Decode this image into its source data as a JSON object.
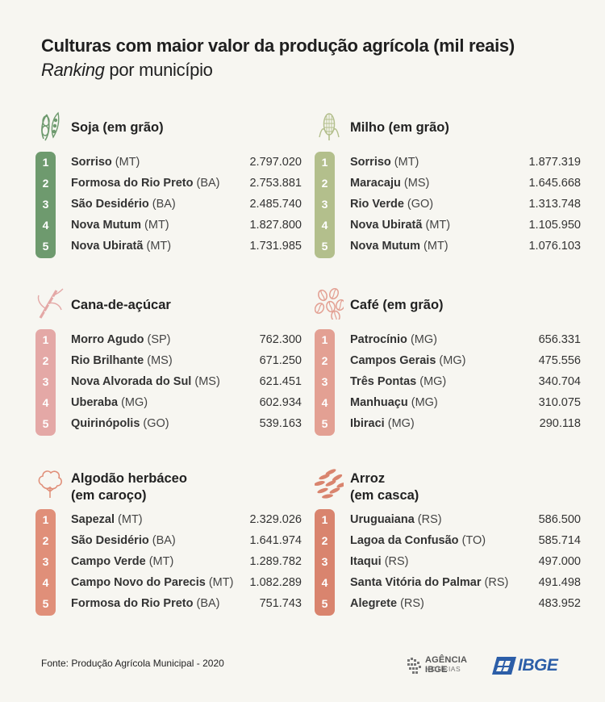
{
  "header": {
    "title": "Culturas com maior valor da produção agrícola (mil reais)",
    "subtitle_italic": "Ranking",
    "subtitle_rest": " por município"
  },
  "colors": {
    "soja": "#6e9a6e",
    "milho": "#b3bf8c",
    "cana": "#e4a8a6",
    "cafe": "#e3a093",
    "algodao": "#e08f79",
    "arroz": "#d9846e"
  },
  "chart_data": [
    {
      "type": "table",
      "title": "Soja (em grão)",
      "icon": "soy-icon",
      "rows": [
        {
          "rank": "1",
          "name": "Sorriso",
          "uf": "(MT)",
          "value": "2.797.020"
        },
        {
          "rank": "2",
          "name": "Formosa do Rio Preto",
          "uf": "(BA)",
          "value": "2.753.881"
        },
        {
          "rank": "3",
          "name": "São Desidério",
          "uf": "(BA)",
          "value": "2.485.740"
        },
        {
          "rank": "4",
          "name": "Nova Mutum",
          "uf": "(MT)",
          "value": "1.827.800"
        },
        {
          "rank": "5",
          "name": "Nova Ubiratã",
          "uf": "(MT)",
          "value": "1.731.985"
        }
      ]
    },
    {
      "type": "table",
      "title": "Milho (em grão)",
      "icon": "corn-icon",
      "rows": [
        {
          "rank": "1",
          "name": "Sorriso",
          "uf": "(MT)",
          "value": "1.877.319"
        },
        {
          "rank": "2",
          "name": "Maracaju",
          "uf": "(MS)",
          "value": "1.645.668"
        },
        {
          "rank": "3",
          "name": "Rio Verde",
          "uf": "(GO)",
          "value": "1.313.748"
        },
        {
          "rank": "4",
          "name": "Nova Ubiratã",
          "uf": "(MT)",
          "value": "1.105.950"
        },
        {
          "rank": "5",
          "name": "Nova Mutum",
          "uf": "(MT)",
          "value": "1.076.103"
        }
      ]
    },
    {
      "type": "table",
      "title": "Cana-de-açúcar",
      "icon": "sugarcane-icon",
      "rows": [
        {
          "rank": "1",
          "name": "Morro Agudo",
          "uf": "(SP)",
          "value": "762.300"
        },
        {
          "rank": "2",
          "name": "Rio Brilhante",
          "uf": "(MS)",
          "value": "671.250"
        },
        {
          "rank": "3",
          "name": "Nova Alvorada do Sul",
          "uf": "(MS)",
          "value": "621.451"
        },
        {
          "rank": "4",
          "name": "Uberaba",
          "uf": "(MG)",
          "value": "602.934"
        },
        {
          "rank": "5",
          "name": "Quirinópolis",
          "uf": "(GO)",
          "value": "539.163"
        }
      ]
    },
    {
      "type": "table",
      "title": "Café (em grão)",
      "icon": "coffee-beans-icon",
      "rows": [
        {
          "rank": "1",
          "name": "Patrocínio",
          "uf": "(MG)",
          "value": "656.331"
        },
        {
          "rank": "2",
          "name": "Campos Gerais",
          "uf": "(MG)",
          "value": "475.556"
        },
        {
          "rank": "3",
          "name": "Três Pontas",
          "uf": "(MG)",
          "value": "340.704"
        },
        {
          "rank": "4",
          "name": "Manhuaçu",
          "uf": "(MG)",
          "value": "310.075"
        },
        {
          "rank": "5",
          "name": "Ibiraci",
          "uf": "(MG)",
          "value": "290.118"
        }
      ]
    },
    {
      "type": "table",
      "title": "Algodão herbáceo\n(em caroço)",
      "icon": "cotton-icon",
      "rows": [
        {
          "rank": "1",
          "name": "Sapezal",
          "uf": "(MT)",
          "value": "2.329.026"
        },
        {
          "rank": "2",
          "name": "São Desidério",
          "uf": "(BA)",
          "value": "1.641.974"
        },
        {
          "rank": "3",
          "name": "Campo Verde",
          "uf": "(MT)",
          "value": "1.289.782"
        },
        {
          "rank": "4",
          "name": "Campo Novo do Parecis",
          "uf": "(MT)",
          "value": "1.082.289"
        },
        {
          "rank": "5",
          "name": "Formosa do Rio Preto",
          "uf": "(BA)",
          "value": "751.743"
        }
      ]
    },
    {
      "type": "table",
      "title": "Arroz\n(em casca)",
      "icon": "rice-icon",
      "rows": [
        {
          "rank": "1",
          "name": "Uruguaiana",
          "uf": "(RS)",
          "value": "586.500"
        },
        {
          "rank": "2",
          "name": "Lagoa da Confusão",
          "uf": "(TO)",
          "value": "585.714"
        },
        {
          "rank": "3",
          "name": "Itaqui",
          "uf": "(RS)",
          "value": "497.000"
        },
        {
          "rank": "4",
          "name": "Santa Vitória do Palmar",
          "uf": "(RS)",
          "value": "491.498"
        },
        {
          "rank": "5",
          "name": "Alegrete",
          "uf": "(RS)",
          "value": "483.952"
        }
      ]
    }
  ],
  "footer": {
    "source": "Fonte: Produção Agrícola Municipal - 2020",
    "agencia_line1": "AGÊNCIA IBGE",
    "agencia_line2": "NOTÍCIAS",
    "ibge": "IBGE"
  }
}
